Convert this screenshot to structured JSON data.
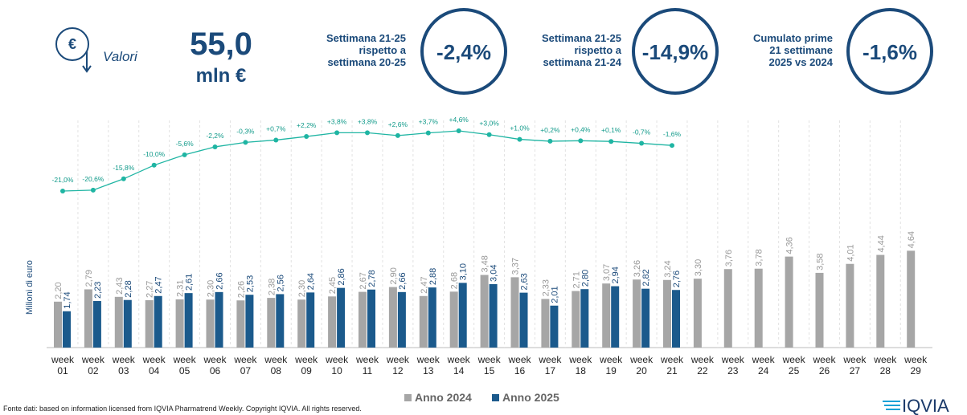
{
  "header": {
    "icon_label": "Valori",
    "value": "55,0",
    "unit": "mln €",
    "kpis": [
      {
        "lines": [
          "Settimana 21-25",
          "rispetto a",
          "settimana 20-25"
        ],
        "value": "-2,4%"
      },
      {
        "lines": [
          "Settimana 21-25",
          "rispetto a",
          "settimana 21-24"
        ],
        "value": "-14,9%"
      },
      {
        "lines": [
          "Cumulato prime",
          "21 settimane",
          "2025 vs 2024"
        ],
        "value": "-1,6%"
      }
    ]
  },
  "chart_data": {
    "type": "bar",
    "y_label": "Milioni di euro",
    "categories": [
      "week 01",
      "week 02",
      "week 03",
      "week 04",
      "week 05",
      "week 06",
      "week 07",
      "week 08",
      "week 09",
      "week 10",
      "week 11",
      "week 12",
      "week 13",
      "week 14",
      "week 15",
      "week 16",
      "week 17",
      "week 18",
      "week 19",
      "week 20",
      "week 21",
      "week 22",
      "week 23",
      "week 24",
      "week 25",
      "week 26",
      "week 27",
      "week 28",
      "week 29"
    ],
    "series": [
      {
        "name": "Anno 2024",
        "color": "#a6a6a6",
        "values": [
          2.2,
          2.79,
          2.43,
          2.27,
          2.31,
          2.3,
          2.26,
          2.38,
          2.3,
          2.45,
          2.67,
          2.9,
          2.47,
          2.68,
          3.48,
          3.37,
          2.33,
          2.71,
          3.07,
          3.26,
          3.24,
          3.3,
          3.76,
          3.78,
          4.36,
          3.58,
          4.01,
          4.44,
          4.64
        ],
        "value_labels": [
          "2,20",
          "2,79",
          "2,43",
          "2,27",
          "2,31",
          "2,30",
          "2,26",
          "2,38",
          "2,30",
          "2,45",
          "2,67",
          "2,90",
          "2,47",
          "2,68",
          "3,48",
          "3,37",
          "2,33",
          "2,71",
          "3,07",
          "3,26",
          "3,24",
          "3,30",
          "3,76",
          "3,78",
          "4,36",
          "3,58",
          "4,01",
          "4,44",
          "4,64"
        ]
      },
      {
        "name": "Anno 2025",
        "color": "#1b5a8c",
        "values": [
          1.74,
          2.23,
          2.28,
          2.47,
          2.61,
          2.66,
          2.53,
          2.56,
          2.64,
          2.86,
          2.78,
          2.66,
          2.88,
          3.1,
          3.04,
          2.63,
          2.01,
          2.8,
          2.94,
          2.82,
          2.76,
          null,
          null,
          null,
          null,
          null,
          null,
          null,
          null
        ],
        "value_labels": [
          "1,74",
          "2,23",
          "2,28",
          "2,47",
          "2,61",
          "2,66",
          "2,53",
          "2,56",
          "2,64",
          "2,86",
          "2,78",
          "2,66",
          "2,88",
          "3,10",
          "3,04",
          "2,63",
          "2,01",
          "2,80",
          "2,94",
          "2,82",
          "2,76",
          null,
          null,
          null,
          null,
          null,
          null,
          null,
          null
        ]
      }
    ],
    "line": {
      "color": "#1fb5a3",
      "values": [
        -21.0,
        -20.6,
        -15.8,
        -10.0,
        -5.6,
        -2.2,
        -0.3,
        0.7,
        2.2,
        3.8,
        3.8,
        2.6,
        3.7,
        4.6,
        3.0,
        1.0,
        0.2,
        0.4,
        0.1,
        -0.7,
        -1.6
      ],
      "value_labels": [
        "-21,0%",
        "-20,6%",
        "-15,8%",
        "-10,0%",
        "-5,6%",
        "-2,2%",
        "-0,3%",
        "+0,7%",
        "+2,2%",
        "+3,8%",
        "+3,8%",
        "+2,6%",
        "+3,7%",
        "+4,6%",
        "+3,0%",
        "+1,0%",
        "+0,2%",
        "+0,4%",
        "+0,1%",
        "-0,7%",
        "-1,6%"
      ]
    }
  },
  "source": "Fonte dati: based on information licensed from IQVIA Pharmatrend Weekly. Copyright IQVIA. All rights reserved.",
  "logo": "IQVIA"
}
